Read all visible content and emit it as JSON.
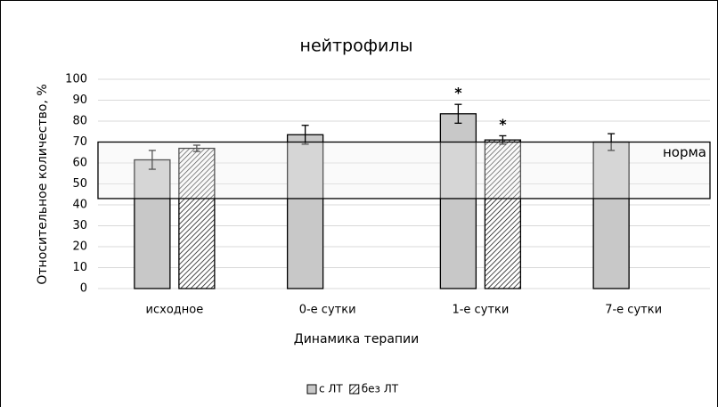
{
  "chart_data": {
    "type": "bar",
    "title": "нейтрофилы",
    "xlabel": "Динамика терапии",
    "ylabel": "Относительное количество, %",
    "categories": [
      "исходное",
      "0-е сутки",
      "1-е сутки",
      "7-е сутки"
    ],
    "series": [
      {
        "name": "с ЛТ",
        "color": "#c8c8c8",
        "values": [
          61.5,
          73.5,
          83.5,
          70
        ],
        "errors": [
          4.5,
          4.5,
          4.5,
          4
        ]
      },
      {
        "name": "без ЛТ",
        "color": "#000000",
        "pattern": "hatch",
        "values": [
          67,
          null,
          71,
          null
        ],
        "errors": [
          1.5,
          null,
          2,
          null
        ]
      }
    ],
    "annotations": [
      {
        "text": "*",
        "category": 2,
        "series": 0
      },
      {
        "text": "*",
        "category": 2,
        "series": 1
      }
    ],
    "norm": {
      "label": "норма",
      "range": [
        43,
        70
      ]
    },
    "ylim": [
      0,
      100
    ],
    "yticks": [
      0,
      10,
      20,
      30,
      40,
      50,
      60,
      70,
      80,
      90,
      100
    ],
    "grid": true,
    "legend": "bottom"
  }
}
